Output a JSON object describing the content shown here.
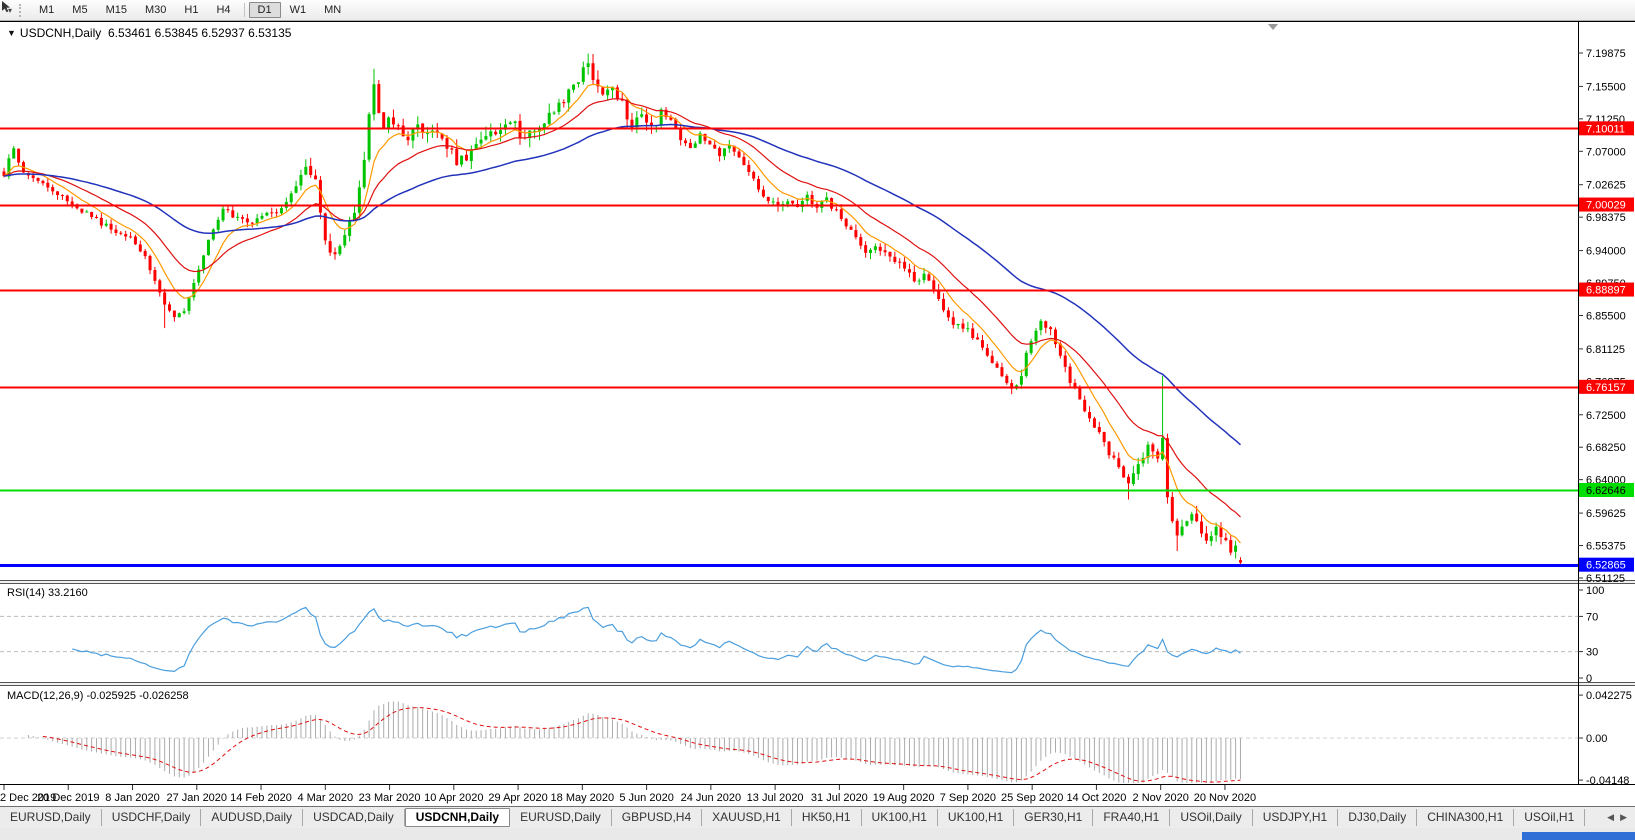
{
  "icons": {
    "title_dropdown": "▼",
    "toolbar_dropdown": "▾",
    "tab_scroll_left": "◀",
    "tab_scroll_right": "▶"
  },
  "toolbar": {
    "timeframes": [
      "M1",
      "M5",
      "M15",
      "M30",
      "H1",
      "H4",
      "D1",
      "W1",
      "MN"
    ],
    "active_timeframe": "D1"
  },
  "chart": {
    "title_symbol": "USDCNH,Daily",
    "title_ohlc": "6.53461 6.53845 6.52937 6.53135",
    "rsi_label": "RSI(14) 33.2160",
    "macd_label": "MACD(12,26,9) -0.025925 -0.026258"
  },
  "tabs": {
    "items": [
      "EURUSD,Daily",
      "USDCHF,Daily",
      "AUDUSD,Daily",
      "USDCAD,Daily",
      "USDCNH,Daily",
      "EURUSD,Daily",
      "GBPUSD,H4",
      "XAUUSD,H1",
      "HK50,H1",
      "UK100,H1",
      "UK100,H1",
      "GER30,H1",
      "FRA40,H1",
      "USOil,Daily",
      "USDJPY,H1",
      "DJ30,Daily",
      "CHINA300,H1",
      "USOil,H1"
    ],
    "active_index": 4
  },
  "chart_data": {
    "type": "candlestick",
    "symbol": "USDCNH",
    "timeframe": "Daily",
    "current_bar": {
      "open": 6.53461,
      "high": 6.53845,
      "low": 6.52937,
      "close": 6.53135
    },
    "bars_total": 255,
    "candle_up_color": "#00C400",
    "candle_down_color": "#FE0000",
    "price_axis_ticks": [
      "7.19875",
      "7.15500",
      "7.11250",
      "7.07000",
      "7.02625",
      "6.98375",
      "6.94000",
      "6.89750",
      "6.85500",
      "6.81125",
      "6.76875",
      "6.72500",
      "6.68250",
      "6.64000",
      "6.59625",
      "6.55375",
      "6.51125"
    ],
    "date_axis_ticks": [
      "2 Dec 2019",
      "20 Dec 2019",
      "8 Jan 2020",
      "27 Jan 2020",
      "14 Feb 2020",
      "4 Mar 2020",
      "23 Mar 2020",
      "10 Apr 2020",
      "29 Apr 2020",
      "18 May 2020",
      "5 Jun 2020",
      "24 Jun 2020",
      "13 Jul 2020",
      "31 Jul 2020",
      "19 Aug 2020",
      "7 Sep 2020",
      "25 Sep 2020",
      "14 Oct 2020",
      "2 Nov 2020",
      "20 Nov 2020"
    ],
    "horizontal_lines": [
      {
        "price": 7.10011,
        "label": "7.10011",
        "color": "#FE0000",
        "width": 2,
        "text_color": "#FFFFFF"
      },
      {
        "price": 7.00029,
        "label": "7.00029",
        "color": "#FE0000",
        "width": 2,
        "text_color": "#FFFFFF"
      },
      {
        "price": 6.88897,
        "label": "6.88897",
        "color": "#FE0000",
        "width": 2,
        "text_color": "#FFFFFF"
      },
      {
        "price": 6.76157,
        "label": "6.76157",
        "color": "#FE0000",
        "width": 2,
        "text_color": "#FFFFFF"
      },
      {
        "price": 6.62646,
        "label": "6.62646",
        "color": "#00DD00",
        "width": 2,
        "text_color": "#000000"
      },
      {
        "price": 6.52865,
        "label": "6.52865",
        "color": "#0000FE",
        "width": 3,
        "text_color": "#FFFFFF"
      }
    ],
    "moving_averages": [
      {
        "type": "EMA",
        "period": 8,
        "color": "#FF9900",
        "stroke": 1.2
      },
      {
        "type": "EMA",
        "period": 20,
        "color": "#E01010",
        "stroke": 1.2
      },
      {
        "type": "EMA",
        "period": 55,
        "color": "#2233BB",
        "stroke": 1.5
      }
    ],
    "rsi": {
      "period": 14,
      "current": 33.216,
      "axis_ticks": [
        "100",
        "70",
        "30",
        "0"
      ],
      "level_lines": [
        70,
        30
      ],
      "color": "#4A9EDE"
    },
    "macd": {
      "fast": 12,
      "slow": 26,
      "signal": 9,
      "current_macd": -0.025925,
      "current_signal": -0.026258,
      "axis_ticks": [
        "0.042275",
        "0.00",
        "-0.04148"
      ],
      "histogram_color": "#ABABAB",
      "signal_color": "#E01010"
    },
    "close_waypoints": [
      [
        0,
        7.038
      ],
      [
        1,
        7.06
      ],
      [
        2,
        7.072
      ],
      [
        4,
        7.045
      ],
      [
        8,
        7.028
      ],
      [
        13,
        7.005
      ],
      [
        17,
        6.988
      ],
      [
        22,
        6.968
      ],
      [
        26,
        6.958
      ],
      [
        29,
        6.932
      ],
      [
        31,
        6.902
      ],
      [
        33,
        6.868
      ],
      [
        35,
        6.85
      ],
      [
        37,
        6.862
      ],
      [
        39,
        6.9
      ],
      [
        41,
        6.935
      ],
      [
        43,
        6.968
      ],
      [
        45,
        6.995
      ],
      [
        48,
        6.982
      ],
      [
        51,
        6.975
      ],
      [
        53,
        6.985
      ],
      [
        56,
        6.992
      ],
      [
        59,
        7.012
      ],
      [
        62,
        7.048
      ],
      [
        64,
        7.03
      ],
      [
        66,
        6.948
      ],
      [
        68,
        6.938
      ],
      [
        70,
        6.958
      ],
      [
        72,
        6.995
      ],
      [
        74,
        7.06
      ],
      [
        75,
        7.115
      ],
      [
        76,
        7.158
      ],
      [
        77,
        7.12
      ],
      [
        78,
        7.098
      ],
      [
        79,
        7.115
      ],
      [
        81,
        7.1
      ],
      [
        83,
        7.082
      ],
      [
        85,
        7.108
      ],
      [
        87,
        7.088
      ],
      [
        89,
        7.098
      ],
      [
        91,
        7.078
      ],
      [
        93,
        7.058
      ],
      [
        95,
        7.062
      ],
      [
        97,
        7.08
      ],
      [
        99,
        7.095
      ],
      [
        101,
        7.088
      ],
      [
        103,
        7.1
      ],
      [
        105,
        7.112
      ],
      [
        106,
        7.082
      ],
      [
        108,
        7.095
      ],
      [
        110,
        7.105
      ],
      [
        112,
        7.118
      ],
      [
        114,
        7.13
      ],
      [
        116,
        7.145
      ],
      [
        118,
        7.162
      ],
      [
        120,
        7.186
      ],
      [
        121,
        7.168
      ],
      [
        123,
        7.142
      ],
      [
        125,
        7.155
      ],
      [
        127,
        7.132
      ],
      [
        129,
        7.102
      ],
      [
        131,
        7.115
      ],
      [
        133,
        7.098
      ],
      [
        135,
        7.122
      ],
      [
        137,
        7.108
      ],
      [
        139,
        7.086
      ],
      [
        141,
        7.076
      ],
      [
        143,
        7.09
      ],
      [
        145,
        7.076
      ],
      [
        147,
        7.066
      ],
      [
        149,
        7.076
      ],
      [
        151,
        7.06
      ],
      [
        153,
        7.045
      ],
      [
        155,
        7.02
      ],
      [
        157,
        7.006
      ],
      [
        159,
        7.0
      ],
      [
        161,
        7.006
      ],
      [
        163,
        6.996
      ],
      [
        165,
        7.01
      ],
      [
        167,
        6.996
      ],
      [
        169,
        7.006
      ],
      [
        171,
        6.99
      ],
      [
        173,
        6.976
      ],
      [
        175,
        6.956
      ],
      [
        177,
        6.94
      ],
      [
        179,
        6.95
      ],
      [
        181,
        6.936
      ],
      [
        183,
        6.926
      ],
      [
        185,
        6.915
      ],
      [
        187,
        6.9
      ],
      [
        189,
        6.91
      ],
      [
        191,
        6.886
      ],
      [
        193,
        6.862
      ],
      [
        195,
        6.846
      ],
      [
        197,
        6.84
      ],
      [
        199,
        6.83
      ],
      [
        201,
        6.816
      ],
      [
        203,
        6.79
      ],
      [
        205,
        6.775
      ],
      [
        207,
        6.756
      ],
      [
        209,
        6.78
      ],
      [
        211,
        6.825
      ],
      [
        213,
        6.846
      ],
      [
        215,
        6.836
      ],
      [
        217,
        6.8
      ],
      [
        219,
        6.77
      ],
      [
        221,
        6.746
      ],
      [
        223,
        6.72
      ],
      [
        225,
        6.7
      ],
      [
        227,
        6.676
      ],
      [
        229,
        6.655
      ],
      [
        231,
        6.636
      ],
      [
        233,
        6.66
      ],
      [
        235,
        6.682
      ],
      [
        237,
        6.664
      ],
      [
        238,
        6.7
      ],
      [
        239,
        6.62
      ],
      [
        240,
        6.59
      ],
      [
        241,
        6.566
      ],
      [
        242,
        6.576
      ],
      [
        243,
        6.59
      ],
      [
        244,
        6.6
      ],
      [
        245,
        6.586
      ],
      [
        246,
        6.57
      ],
      [
        247,
        6.556
      ],
      [
        248,
        6.57
      ],
      [
        249,
        6.576
      ],
      [
        250,
        6.566
      ],
      [
        251,
        6.556
      ],
      [
        252,
        6.545
      ],
      [
        253,
        6.549
      ],
      [
        254,
        6.5314
      ]
    ],
    "wick_overrides": [
      {
        "index": 33,
        "low": 6.8385
      },
      {
        "index": 76,
        "high": 7.178
      },
      {
        "index": 120,
        "high": 7.198
      },
      {
        "index": 207,
        "low": 6.752
      },
      {
        "index": 231,
        "low": 6.614
      },
      {
        "index": 238,
        "high": 6.776
      },
      {
        "index": 241,
        "low": 6.5465
      }
    ]
  }
}
